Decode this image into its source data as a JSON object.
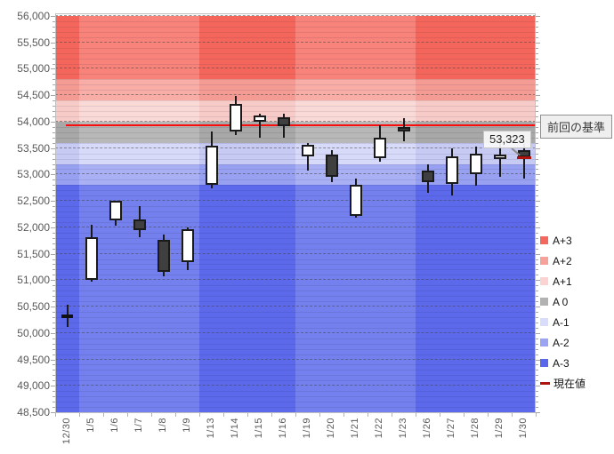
{
  "chart_data": {
    "type": "candlestick",
    "title": "",
    "y_axis": {
      "min": 48500,
      "max": 56000,
      "major_step": 500,
      "minor_step": 100,
      "tick_labels": [
        "56,000",
        "55,500",
        "55,000",
        "54,500",
        "54,000",
        "53,500",
        "53,000",
        "52,500",
        "52,000",
        "51,500",
        "51,000",
        "50,500",
        "50,000",
        "49,500",
        "49,000",
        "48,500"
      ]
    },
    "x_axis": {
      "categories": [
        "12/30",
        "1/5",
        "1/6",
        "1/7",
        "1/8",
        "1/9",
        "1/13",
        "1/14",
        "1/15",
        "1/16",
        "1/19",
        "1/20",
        "1/21",
        "1/22",
        "1/23",
        "1/26",
        "1/27",
        "1/28",
        "1/29",
        "1/30"
      ]
    },
    "week_groups": [
      [
        0,
        1
      ],
      [
        1,
        6
      ],
      [
        6,
        10
      ],
      [
        10,
        15
      ],
      [
        15,
        20
      ]
    ],
    "bands": [
      {
        "label": "A+3",
        "from": 54800,
        "to": 56000,
        "color_dark": "#f4665c",
        "color_light": "#f8837b"
      },
      {
        "label": "A+2",
        "from": 54400,
        "to": 54800,
        "color_dark": "#f49b94",
        "color_light": "#f8ada7"
      },
      {
        "label": "A+1",
        "from": 54000,
        "to": 54400,
        "color_dark": "#f7cbc7",
        "color_light": "#fadad7"
      },
      {
        "label": "A 0",
        "from": 53600,
        "to": 54000,
        "color_dark": "#a8a8a8",
        "color_light": "#b8b8b8"
      },
      {
        "label": "A-1",
        "from": 53200,
        "to": 53600,
        "color_dark": "#c7cbf4",
        "color_light": "#d8daf9"
      },
      {
        "label": "A-2",
        "from": 52800,
        "to": 53200,
        "color_dark": "#98a1f1",
        "color_light": "#aab0f4"
      },
      {
        "label": "A-3",
        "from": 48500,
        "to": 52800,
        "color_dark": "#5c69ea",
        "color_light": "#7480ee"
      }
    ],
    "baseline": {
      "label": "前回の基準",
      "value": 53940,
      "color": "#fb0d0d"
    },
    "current": {
      "label": "現在値",
      "value": 53323,
      "display": "53,323",
      "color": "#b0120e"
    },
    "candles": [
      {
        "date": "12/30",
        "open": 50320,
        "high": 50540,
        "low": 50110,
        "close": 50320,
        "direction": "doji"
      },
      {
        "date": "1/5",
        "open": 51000,
        "high": 52050,
        "low": 50970,
        "close": 51820,
        "direction": "up"
      },
      {
        "date": "1/6",
        "open": 52140,
        "high": 52510,
        "low": 52030,
        "close": 52510,
        "direction": "up"
      },
      {
        "date": "1/7",
        "open": 52150,
        "high": 52400,
        "low": 51820,
        "close": 51950,
        "direction": "down"
      },
      {
        "date": "1/8",
        "open": 51760,
        "high": 51860,
        "low": 51080,
        "close": 51150,
        "direction": "down"
      },
      {
        "date": "1/9",
        "open": 51345,
        "high": 52005,
        "low": 51190,
        "close": 51960,
        "direction": "up"
      },
      {
        "date": "1/13",
        "open": 52810,
        "high": 53820,
        "low": 52730,
        "close": 53550,
        "direction": "up"
      },
      {
        "date": "1/14",
        "open": 53820,
        "high": 54480,
        "low": 53740,
        "close": 54340,
        "direction": "up"
      },
      {
        "date": "1/15",
        "open": 54005,
        "high": 54150,
        "low": 53700,
        "close": 54115,
        "direction": "up"
      },
      {
        "date": "1/16",
        "open": 54090,
        "high": 54155,
        "low": 53700,
        "close": 53920,
        "direction": "down"
      },
      {
        "date": "1/19",
        "open": 53350,
        "high": 53590,
        "low": 53080,
        "close": 53570,
        "direction": "up"
      },
      {
        "date": "1/20",
        "open": 53380,
        "high": 53460,
        "low": 52860,
        "close": 52960,
        "direction": "down"
      },
      {
        "date": "1/21",
        "open": 52215,
        "high": 52915,
        "low": 52185,
        "close": 52810,
        "direction": "up"
      },
      {
        "date": "1/22",
        "open": 53310,
        "high": 53930,
        "low": 53250,
        "close": 53700,
        "direction": "up"
      },
      {
        "date": "1/23",
        "open": 53900,
        "high": 54060,
        "low": 53630,
        "close": 53815,
        "direction": "down"
      },
      {
        "date": "1/26",
        "open": 53080,
        "high": 53185,
        "low": 52650,
        "close": 52860,
        "direction": "down"
      },
      {
        "date": "1/27",
        "open": 52830,
        "high": 53500,
        "low": 52605,
        "close": 53350,
        "direction": "up"
      },
      {
        "date": "1/28",
        "open": 53000,
        "high": 53520,
        "low": 52780,
        "close": 53400,
        "direction": "up"
      },
      {
        "date": "1/29",
        "open": 53290,
        "high": 53660,
        "low": 52950,
        "close": 53380,
        "direction": "up"
      },
      {
        "date": "1/30",
        "open": 53460,
        "high": 53575,
        "low": 52930,
        "close": 53323,
        "direction": "down",
        "current": true
      }
    ],
    "legend": [
      {
        "label": "A+3",
        "color": "#f2685e",
        "type": "square"
      },
      {
        "label": "A+2",
        "color": "#f6a29b",
        "type": "square"
      },
      {
        "label": "A+1",
        "color": "#fbd4d1",
        "type": "square"
      },
      {
        "label": "A 0",
        "color": "#b2b2b2",
        "type": "square"
      },
      {
        "label": "A-1",
        "color": "#dadcfb",
        "type": "square"
      },
      {
        "label": "A-2",
        "color": "#9ba4f2",
        "type": "square"
      },
      {
        "label": "A-3",
        "color": "#5a67ea",
        "type": "square"
      },
      {
        "label": "現在値",
        "color": "#b0120e",
        "type": "dash"
      }
    ],
    "legend_position": "right",
    "grid": {
      "major_dashed": true,
      "minor_solid": true
    }
  }
}
